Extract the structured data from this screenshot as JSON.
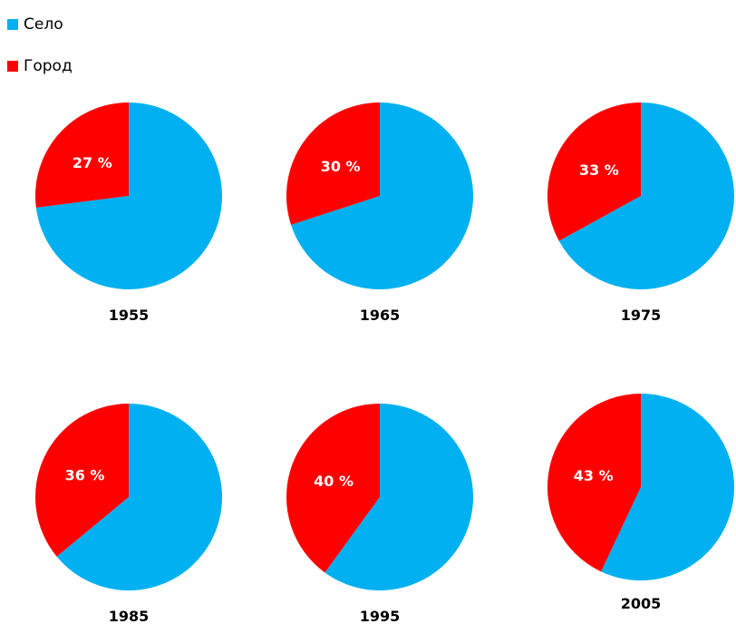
{
  "colors": {
    "selo": "#00B0F0",
    "gorod": "#FF0000"
  },
  "legend": [
    {
      "label": "Село",
      "color": "#00B0F0"
    },
    {
      "label": "Город",
      "color": "#FF0000"
    }
  ],
  "chart_data": [
    {
      "type": "pie",
      "title": "1955",
      "slices": [
        {
          "name": "Город",
          "value": 27,
          "label": "27 %"
        },
        {
          "name": "Село",
          "value": 73,
          "label": ""
        }
      ]
    },
    {
      "type": "pie",
      "title": "1965",
      "slices": [
        {
          "name": "Город",
          "value": 30,
          "label": "30 %"
        },
        {
          "name": "Село",
          "value": 70,
          "label": ""
        }
      ]
    },
    {
      "type": "pie",
      "title": "1975",
      "slices": [
        {
          "name": "Город",
          "value": 33,
          "label": "33 %"
        },
        {
          "name": "Село",
          "value": 67,
          "label": ""
        }
      ]
    },
    {
      "type": "pie",
      "title": "1985",
      "slices": [
        {
          "name": "Город",
          "value": 36,
          "label": "36 %"
        },
        {
          "name": "Село",
          "value": 64,
          "label": ""
        }
      ]
    },
    {
      "type": "pie",
      "title": "1995",
      "slices": [
        {
          "name": "Город",
          "value": 40,
          "label": "40 %"
        },
        {
          "name": "Село",
          "value": 60,
          "label": ""
        }
      ]
    },
    {
      "type": "pie",
      "title": "2005",
      "slices": [
        {
          "name": "Город",
          "value": 43,
          "label": "43 %"
        },
        {
          "name": "Село",
          "value": 57,
          "label": ""
        }
      ]
    }
  ]
}
